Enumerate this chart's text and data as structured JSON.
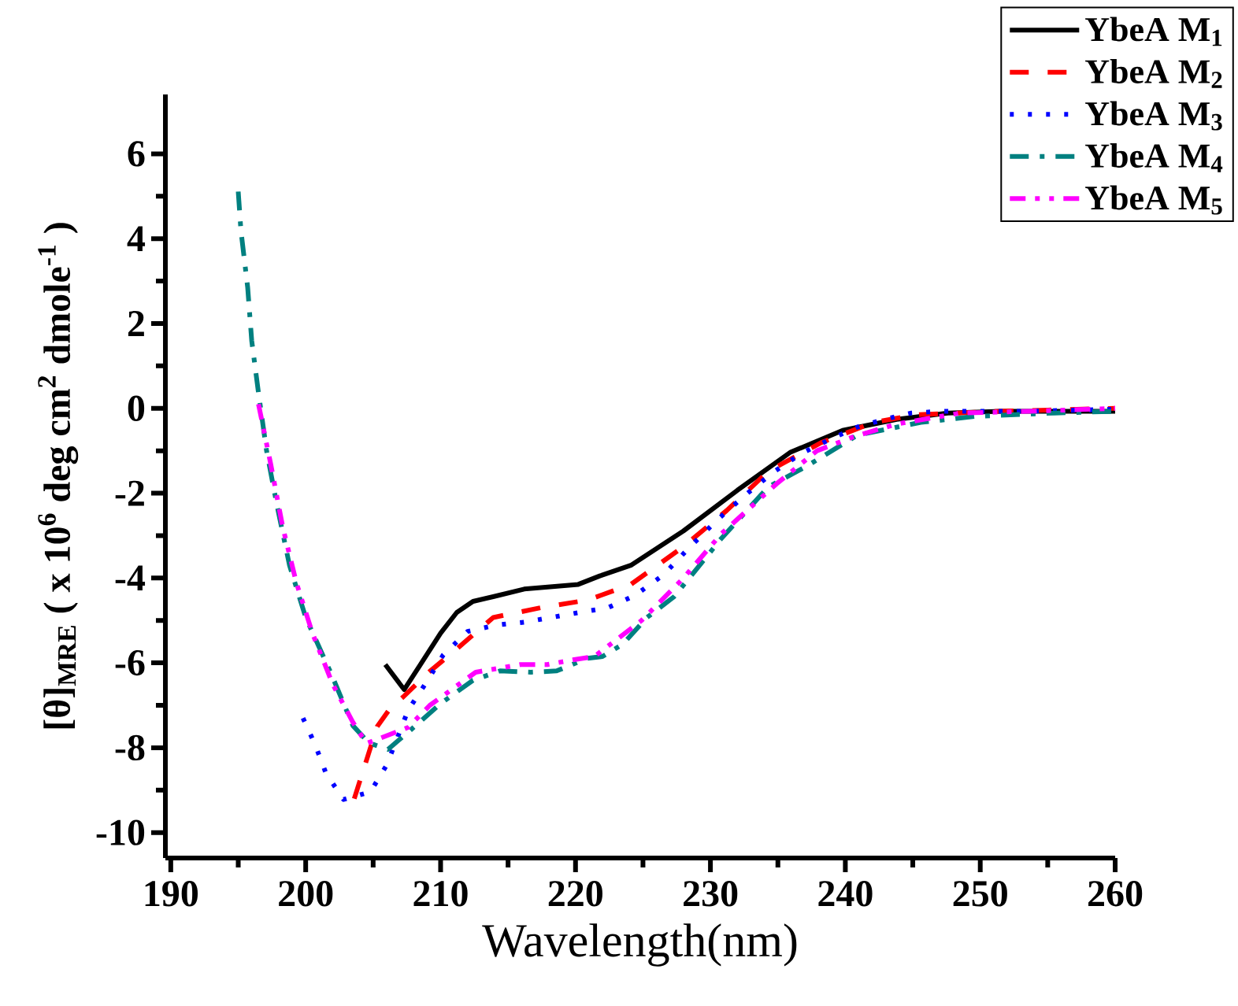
{
  "chart_data": {
    "type": "line",
    "xlabel": "Wavelength(nm)",
    "ylabel": "[θ]$_{MRE}$ ( x 10$^{6}$ deg cm$^{2}$ dmole$^{-1}$ )",
    "xlim": [
      189.6,
      260
    ],
    "ylim": [
      -10.6,
      7.4
    ],
    "xticks": [
      190,
      200,
      210,
      220,
      230,
      240,
      250,
      260
    ],
    "yticks": [
      -10,
      -8,
      -6,
      -4,
      -2,
      0,
      2,
      4,
      6
    ],
    "legend": "top right",
    "series": [
      {
        "name": "YbeA M$_{1}$",
        "color": "#000000",
        "line_style": "solid",
        "x": [
          205.9,
          207.3,
          208.5,
          210.0,
          211.2,
          212.4,
          213.9,
          216.2,
          220.2,
          221.8,
          224.1,
          228.0,
          232.0,
          235.9,
          239.8,
          243.8,
          247.6,
          251.5,
          255.0,
          260.0
        ],
        "values": [
          -6.04,
          -6.63,
          -6.04,
          -5.3,
          -4.81,
          -4.55,
          -4.44,
          -4.26,
          -4.15,
          -3.95,
          -3.7,
          -2.89,
          -1.93,
          -1.04,
          -0.52,
          -0.26,
          -0.11,
          -0.07,
          -0.07,
          -0.07
        ]
      },
      {
        "name": "YbeA M$_{2}$",
        "color": "#ff0000",
        "line_style": "dashed",
        "x": [
          203.6,
          204.5,
          205.3,
          206.2,
          207.3,
          209.2,
          211.2,
          213.9,
          217.4,
          220.9,
          224.1,
          228.0,
          231.2,
          234.3,
          238.2,
          242.1,
          245.3,
          251.5,
          255.0,
          260.0
        ],
        "values": [
          -9.2,
          -8.3,
          -7.5,
          -7.1,
          -6.78,
          -6.2,
          -5.67,
          -4.93,
          -4.7,
          -4.52,
          -4.15,
          -3.26,
          -2.41,
          -1.48,
          -0.81,
          -0.33,
          -0.15,
          -0.07,
          -0.04,
          0.0
        ]
      },
      {
        "name": "YbeA M$_{3}$",
        "color": "#0000ff",
        "line_style": "dotted",
        "x": [
          199.8,
          200.7,
          201.5,
          202.8,
          204.8,
          206.0,
          207.6,
          208.9,
          210.2,
          212.0,
          214.1,
          216.2,
          218.2,
          220.3,
          222.4,
          224.4,
          226.5,
          228.5,
          230.5,
          232.6,
          234.6,
          236.7,
          238.8,
          240.9,
          242.9,
          244.9,
          247.1,
          253.2,
          257.4,
          260.0
        ],
        "values": [
          -7.3,
          -7.93,
          -8.6,
          -9.22,
          -9.04,
          -8.41,
          -7.11,
          -6.48,
          -5.81,
          -5.26,
          -5.11,
          -5.04,
          -4.93,
          -4.81,
          -4.7,
          -4.41,
          -3.93,
          -3.26,
          -2.63,
          -2.04,
          -1.52,
          -1.07,
          -0.74,
          -0.44,
          -0.26,
          -0.11,
          -0.07,
          -0.07,
          -0.04,
          -0.02
        ]
      },
      {
        "name": "YbeA M$_{4}$",
        "color": "#008080",
        "line_style": "dashdot",
        "x": [
          195.0,
          195.2,
          195.7,
          196.0,
          196.5,
          197.1,
          197.9,
          198.8,
          200.0,
          201.8,
          203.5,
          204.7,
          206.1,
          208.0,
          210.0,
          212.4,
          214.4,
          216.7,
          218.6,
          220.9,
          222.0,
          223.5,
          225.3,
          227.3,
          229.2,
          230.8,
          232.7,
          234.3,
          237.1,
          240.9,
          245.6,
          249.6,
          255.5,
          260.0
        ],
        "values": [
          5.11,
          4.19,
          2.85,
          1.59,
          0.37,
          -1.0,
          -2.33,
          -3.7,
          -4.93,
          -6.19,
          -7.48,
          -7.89,
          -8.04,
          -7.52,
          -6.96,
          -6.41,
          -6.19,
          -6.22,
          -6.19,
          -5.89,
          -5.85,
          -5.56,
          -4.93,
          -4.44,
          -3.7,
          -3.07,
          -2.41,
          -1.85,
          -1.37,
          -0.63,
          -0.33,
          -0.19,
          -0.11,
          -0.07
        ]
      },
      {
        "name": "YbeA M$_{5}$",
        "color": "#ff00ff",
        "line_style": "dashdotdot",
        "x": [
          196.5,
          197.4,
          198.3,
          199.3,
          200.5,
          202.0,
          203.5,
          204.5,
          205.5,
          207.6,
          209.2,
          212.6,
          215.9,
          217.9,
          219.8,
          221.4,
          224.9,
          228.0,
          230.8,
          232.7,
          234.9,
          237.9,
          240.6,
          243.8,
          248.5,
          253.5,
          260.0
        ],
        "values": [
          0.1,
          -1.3,
          -2.8,
          -4.1,
          -5.3,
          -6.5,
          -7.4,
          -7.9,
          -7.78,
          -7.52,
          -7.0,
          -6.22,
          -6.04,
          -6.04,
          -5.93,
          -5.85,
          -5.0,
          -4.0,
          -2.96,
          -2.41,
          -1.78,
          -1.0,
          -0.67,
          -0.37,
          -0.11,
          -0.07,
          0.0
        ]
      }
    ]
  }
}
